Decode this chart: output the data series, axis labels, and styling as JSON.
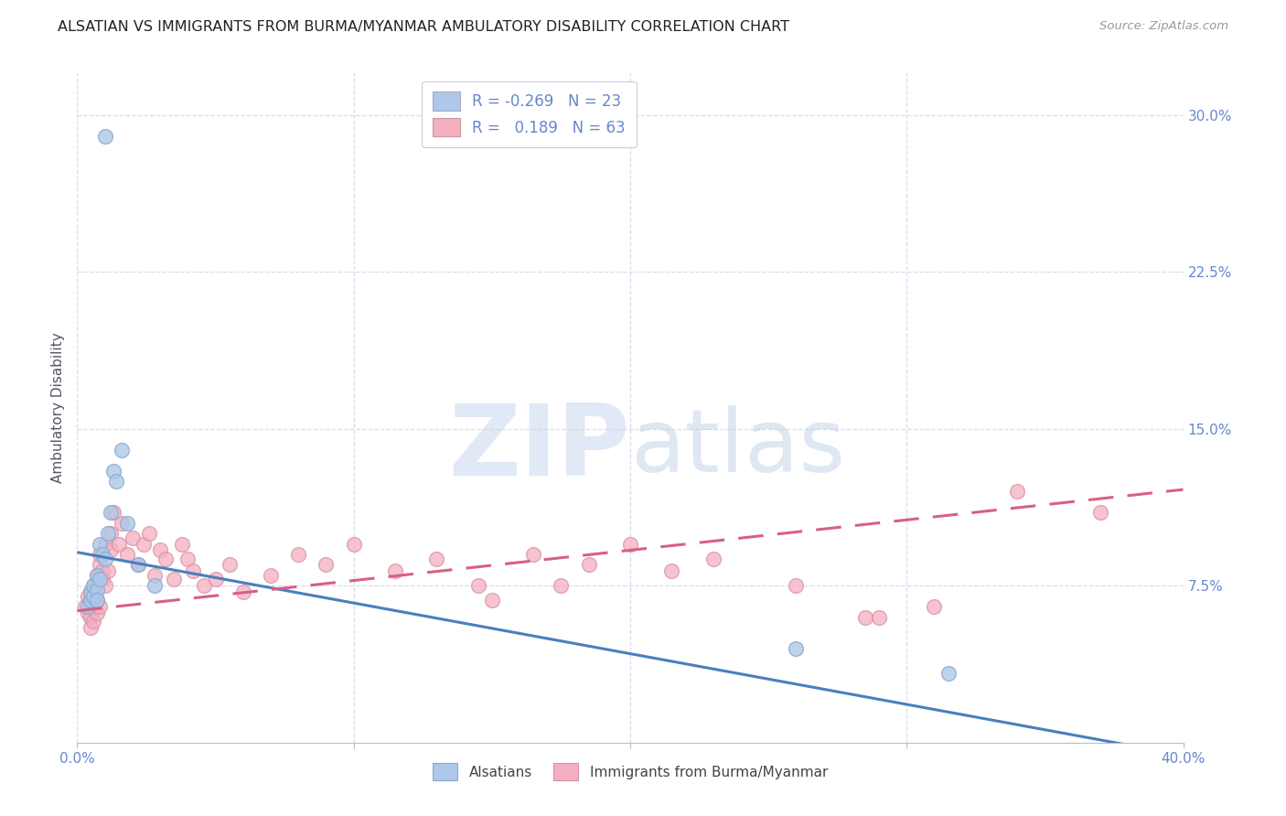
{
  "title": "ALSATIAN VS IMMIGRANTS FROM BURMA/MYANMAR AMBULATORY DISABILITY CORRELATION CHART",
  "source": "Source: ZipAtlas.com",
  "ylabel": "Ambulatory Disability",
  "background_color": "#ffffff",
  "grid_color": "#d8ddf0",
  "watermark": "ZIPatlas",
  "legend_R1": "-0.269",
  "legend_N1": "23",
  "legend_R2": "0.189",
  "legend_N2": "63",
  "color_blue": "#adc8e8",
  "color_pink": "#f4afc0",
  "line_blue": "#4a7fbe",
  "line_pink": "#d96080",
  "title_color": "#222222",
  "axis_color": "#6688cc",
  "xlim": [
    0.0,
    0.4
  ],
  "ylim": [
    0.0,
    0.32
  ],
  "blue_line_x": [
    0.0,
    0.4
  ],
  "blue_line_y": [
    0.091,
    -0.006
  ],
  "pink_line_x": [
    0.0,
    0.4
  ],
  "pink_line_y": [
    0.063,
    0.121
  ],
  "alsatians_x": [
    0.01,
    0.004,
    0.005,
    0.005,
    0.006,
    0.006,
    0.007,
    0.007,
    0.007,
    0.008,
    0.008,
    0.009,
    0.01,
    0.011,
    0.012,
    0.013,
    0.014,
    0.016,
    0.018,
    0.022,
    0.028,
    0.26,
    0.315
  ],
  "alsatians_y": [
    0.29,
    0.065,
    0.068,
    0.072,
    0.07,
    0.075,
    0.073,
    0.068,
    0.08,
    0.078,
    0.095,
    0.09,
    0.088,
    0.1,
    0.11,
    0.13,
    0.125,
    0.14,
    0.105,
    0.085,
    0.075,
    0.045,
    0.033
  ],
  "burma_x": [
    0.003,
    0.004,
    0.004,
    0.005,
    0.005,
    0.005,
    0.005,
    0.006,
    0.006,
    0.006,
    0.006,
    0.007,
    0.007,
    0.007,
    0.008,
    0.008,
    0.008,
    0.009,
    0.009,
    0.01,
    0.01,
    0.011,
    0.012,
    0.012,
    0.013,
    0.015,
    0.016,
    0.018,
    0.02,
    0.022,
    0.024,
    0.026,
    0.028,
    0.03,
    0.032,
    0.035,
    0.038,
    0.04,
    0.042,
    0.046,
    0.05,
    0.055,
    0.06,
    0.07,
    0.08,
    0.09,
    0.1,
    0.115,
    0.13,
    0.145,
    0.165,
    0.185,
    0.2,
    0.215,
    0.23,
    0.26,
    0.285,
    0.31,
    0.34,
    0.37,
    0.15,
    0.175,
    0.29
  ],
  "burma_y": [
    0.065,
    0.07,
    0.062,
    0.068,
    0.072,
    0.06,
    0.055,
    0.075,
    0.073,
    0.065,
    0.058,
    0.08,
    0.068,
    0.062,
    0.085,
    0.09,
    0.065,
    0.078,
    0.082,
    0.075,
    0.095,
    0.082,
    0.092,
    0.1,
    0.11,
    0.095,
    0.105,
    0.09,
    0.098,
    0.085,
    0.095,
    0.1,
    0.08,
    0.092,
    0.088,
    0.078,
    0.095,
    0.088,
    0.082,
    0.075,
    0.078,
    0.085,
    0.072,
    0.08,
    0.09,
    0.085,
    0.095,
    0.082,
    0.088,
    0.075,
    0.09,
    0.085,
    0.095,
    0.082,
    0.088,
    0.075,
    0.06,
    0.065,
    0.12,
    0.11,
    0.068,
    0.075,
    0.06
  ]
}
